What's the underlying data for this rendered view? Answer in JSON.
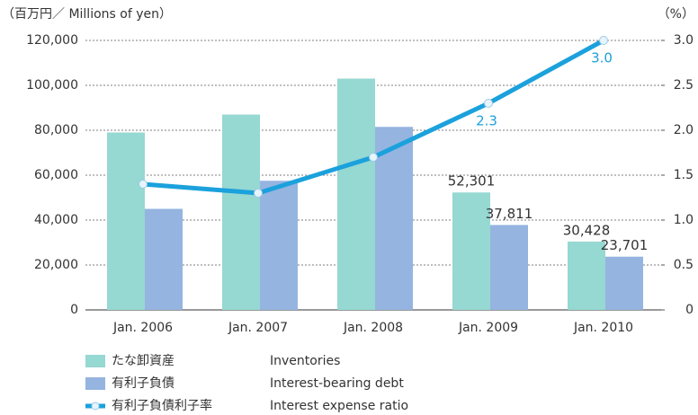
{
  "chart_data": {
    "type": "bar-line",
    "y_label": "（百万円／ Millions of yen）",
    "y2_label": "（%）",
    "categories": [
      "Jan. 2006",
      "Jan. 2007",
      "Jan. 2008",
      "Jan. 2009",
      "Jan. 2010"
    ],
    "series": [
      {
        "name": "たな卸資産",
        "name_en": "Inventories",
        "type": "bar",
        "color": "#96d8d2",
        "values": [
          79000,
          87000,
          103000,
          52301,
          30428
        ],
        "value_labels": [
          null,
          null,
          null,
          "52,301",
          "30,428"
        ]
      },
      {
        "name": "有利子負債",
        "name_en": "Interest-bearing debt",
        "type": "bar",
        "color": "#95b4e0",
        "values": [
          45000,
          57500,
          81500,
          37811,
          23701
        ],
        "value_labels": [
          null,
          null,
          null,
          "37,811",
          "23,701"
        ]
      },
      {
        "name": "有利子負債利子率",
        "name_en": "Interest expense ratio",
        "type": "line",
        "axis": "y2",
        "color": "#1ba1dc",
        "values": [
          1.4,
          1.3,
          1.7,
          2.3,
          3.0
        ],
        "value_labels": [
          null,
          null,
          null,
          "2.3",
          "3.0"
        ]
      }
    ],
    "ylim": [
      0,
      120000
    ],
    "yticks": [
      0,
      {
        "value": 20000,
        "label": "20,000"
      },
      {
        "value": 40000,
        "label": "40,000"
      },
      {
        "value": 60000,
        "label": "60,000"
      },
      {
        "value": 80000,
        "label": "80,000"
      },
      {
        "value": 100000,
        "label": "100,000"
      },
      {
        "value": 120000,
        "label": "120,000"
      }
    ],
    "y2lim": [
      0,
      3.0
    ],
    "y2ticks": [
      0,
      0.5,
      {
        "value": 1.0,
        "label": "1.0"
      },
      1.5,
      {
        "value": 2.0,
        "label": "2.0"
      },
      2.5,
      {
        "value": 3.0,
        "label": "3.0"
      }
    ],
    "grid": true
  }
}
